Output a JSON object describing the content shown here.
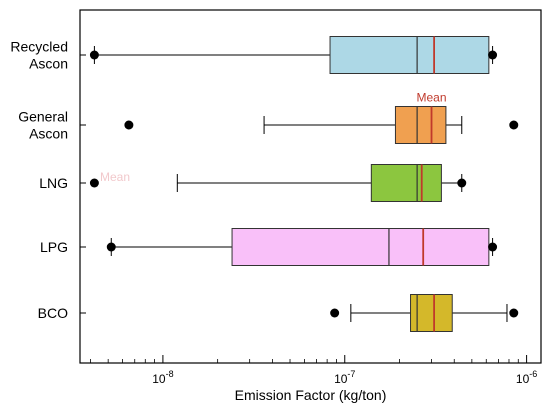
{
  "chart_data": {
    "type": "box",
    "orientation": "horizontal",
    "xlabel": "Emission Factor (kg/ton)",
    "xscale": "log",
    "xlim": [
      3.5e-09,
      1.2e-06
    ],
    "xticks": [
      {
        "value": 1e-08,
        "base": "10",
        "exp": "-8"
      },
      {
        "value": 1e-07,
        "base": "10",
        "exp": "-7"
      },
      {
        "value": 1e-06,
        "base": "10",
        "exp": "-6"
      }
    ],
    "annotation": {
      "text": "Mean",
      "category": "General Ascon"
    },
    "ghost_annotation": {
      "text": "Mean",
      "category": "LNG"
    },
    "series": [
      {
        "category": "Recycled Ascon",
        "label_lines": [
          "Recycled",
          "Ascon"
        ],
        "color": "#add8e6",
        "whisker_low": 4.2e-09,
        "q1": 8.3e-08,
        "median": 2.5e-07,
        "mean": 3.1e-07,
        "q3": 6.2e-07,
        "whisker_high": 6.5e-07,
        "outliers": [
          4.2e-09,
          6.5e-07
        ]
      },
      {
        "category": "General Ascon",
        "label_lines": [
          "General",
          "Ascon"
        ],
        "color": "#f0a050",
        "whisker_low": 3.6e-08,
        "q1": 1.9e-07,
        "median": 2.5e-07,
        "mean": 3e-07,
        "q3": 3.6e-07,
        "whisker_high": 4.4e-07,
        "outliers": [
          6.5e-09,
          8.5e-07
        ]
      },
      {
        "category": "LNG",
        "label_lines": [
          "LNG"
        ],
        "color": "#8cc63f",
        "whisker_low": 1.2e-08,
        "q1": 1.4e-07,
        "median": 2.5e-07,
        "mean": 2.65e-07,
        "q3": 3.4e-07,
        "whisker_high": 4.4e-07,
        "outliers": [
          4.2e-09,
          4.4e-07
        ]
      },
      {
        "category": "LPG",
        "label_lines": [
          "LPG"
        ],
        "color": "#f9c0f9",
        "whisker_low": 5.2e-09,
        "q1": 2.4e-08,
        "median": 1.75e-07,
        "mean": 2.7e-07,
        "q3": 6.2e-07,
        "whisker_high": 6.5e-07,
        "outliers": [
          5.2e-09,
          6.5e-07
        ]
      },
      {
        "category": "BCO",
        "label_lines": [
          "BCO"
        ],
        "color": "#d4b82a",
        "whisker_low": 1.08e-07,
        "q1": 2.3e-07,
        "median": 2.5e-07,
        "mean": 3.1e-07,
        "q3": 3.9e-07,
        "whisker_high": 7.8e-07,
        "outliers": [
          8.8e-08,
          8.5e-07
        ]
      }
    ],
    "colors": {
      "mean_line": "#c0392b",
      "median_line": "#333333",
      "frame": "#000000"
    },
    "grid": false,
    "legend": "none"
  }
}
